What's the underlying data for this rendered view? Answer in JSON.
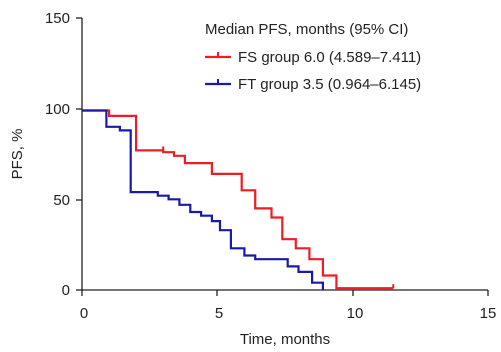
{
  "chart_data": {
    "type": "line",
    "xlabel": "Time, months",
    "ylabel": "PFS, %",
    "xlim": [
      0,
      15
    ],
    "ylim": [
      0,
      150
    ],
    "x_ticks": [
      "0",
      "5",
      "10",
      "15"
    ],
    "y_ticks": [
      "0",
      "50",
      "100",
      "150"
    ],
    "grid": false,
    "legend_position": "top-right",
    "legend_title": "Median PFS, months (95% CI)",
    "series": [
      {
        "name": "FS group 6.0 (4.589–7.411)",
        "color": "#ee1c25",
        "x": [
          0,
          1.0,
          2.0,
          2.0,
          3.0,
          3.4,
          3.8,
          4.8,
          5.9,
          6.4,
          7.0,
          7.4,
          7.9,
          8.4,
          8.9,
          9.4,
          11.5
        ],
        "y": [
          99,
          96,
          96,
          77,
          76,
          74,
          70,
          64,
          55,
          45,
          40,
          28,
          23,
          17,
          8,
          1,
          1
        ],
        "censor_x": [
          3.0,
          11.5
        ],
        "censor_y": [
          77,
          1
        ]
      },
      {
        "name": "FT group 3.5 (0.964–6.145)",
        "color": "#1a1aa8",
        "x": [
          0,
          0.9,
          1.4,
          1.8,
          1.8,
          2.8,
          3.2,
          3.6,
          4.0,
          4.4,
          4.8,
          5.1,
          5.5,
          6.0,
          6.4,
          7.0,
          7.6,
          8.0,
          8.5,
          8.9
        ],
        "y": [
          99,
          90,
          88,
          86,
          54,
          52,
          50,
          47,
          43,
          41,
          38,
          33,
          23,
          19,
          17,
          17,
          13,
          10,
          4,
          0
        ],
        "censor_x": [],
        "censor_y": []
      }
    ]
  }
}
